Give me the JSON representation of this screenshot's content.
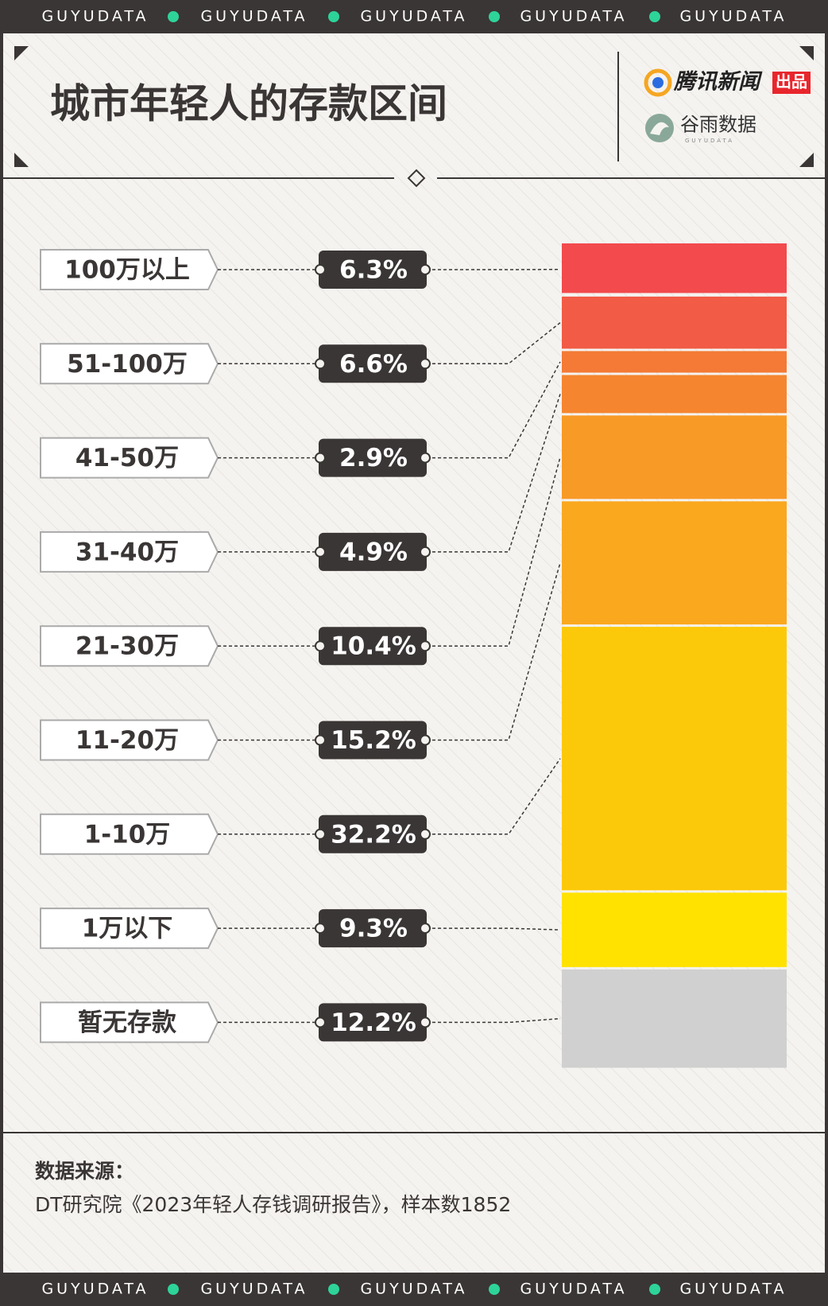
{
  "banner": "GUYUDATA",
  "brand": {
    "publisher": "腾讯新闻",
    "badge": "出品",
    "partner": "谷雨数据",
    "partner_sub": "GUYUDATA"
  },
  "chart_data": {
    "type": "stacked-bar",
    "title": "城市年轻人的存款区间",
    "categories": [
      "100万以上",
      "51-100万",
      "41-50万",
      "31-40万",
      "21-30万",
      "11-20万",
      "1-10万",
      "1万以下",
      "暂无存款"
    ],
    "values": [
      6.3,
      6.6,
      2.9,
      4.9,
      10.4,
      15.2,
      32.2,
      9.3,
      12.2
    ],
    "value_labels": [
      "6.3%",
      "6.6%",
      "2.9%",
      "4.9%",
      "10.4%",
      "15.2%",
      "32.2%",
      "9.3%",
      "12.2%"
    ],
    "colors": [
      "#f24a4d",
      "#f25b45",
      "#f47a35",
      "#f5852f",
      "#f89a26",
      "#faa81e",
      "#fcc90a",
      "#ffe200",
      "#d0d0d0"
    ]
  },
  "source": {
    "label": "数据来源：",
    "text": "DT研究院《2023年轻人存钱调研报告》，样本数1852"
  }
}
